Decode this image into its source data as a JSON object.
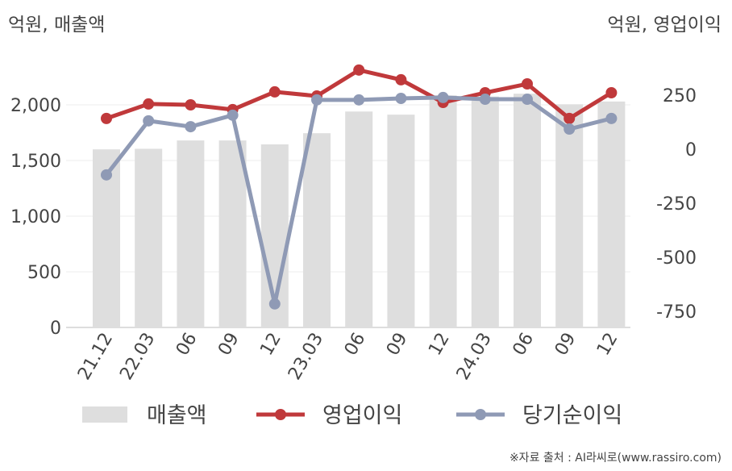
{
  "chart_data": {
    "type": "bar",
    "y_label": "억원, 매출액",
    "y2_label": "억원, 영업이익",
    "source": "※자료 출처 : AI라씨로(www.rassiro.com)",
    "categories": [
      "21.12",
      "22.03",
      "06",
      "09",
      "12",
      "23.03",
      "06",
      "09",
      "12",
      "24.03",
      "06",
      "09",
      "12"
    ],
    "series": [
      {
        "name": "매출액",
        "type": "bar",
        "color": "#dedede",
        "values": [
          1600,
          1605,
          1680,
          1680,
          1645,
          1745,
          1940,
          1912,
          2085,
          2075,
          2100,
          2005,
          2030
        ]
      },
      {
        "name": "영업이익",
        "type": "line",
        "axis": "y2",
        "color": "#c0393b",
        "values": [
          142,
          209,
          205,
          183,
          265,
          246,
          366,
          321,
          216,
          261,
          302,
          142,
          261
        ]
      },
      {
        "name": "당기순이익",
        "type": "line",
        "axis": "y2",
        "color": "#8f9ab5",
        "values": [
          -119,
          131,
          104,
          157,
          -716,
          228,
          228,
          235,
          239,
          231,
          231,
          93,
          142
        ]
      }
    ],
    "ylim": [
      0,
      2400
    ],
    "yticks": [
      0,
      500,
      {
        "value": 1000,
        "label": "1,000"
      },
      {
        "value": 1500,
        "label": "1,500"
      },
      {
        "value": 2000,
        "label": "2,000"
      }
    ],
    "y2lim": [
      -825,
      411
    ],
    "y2ticks": [
      -750,
      -500,
      -250,
      0,
      250
    ],
    "grid": true
  }
}
